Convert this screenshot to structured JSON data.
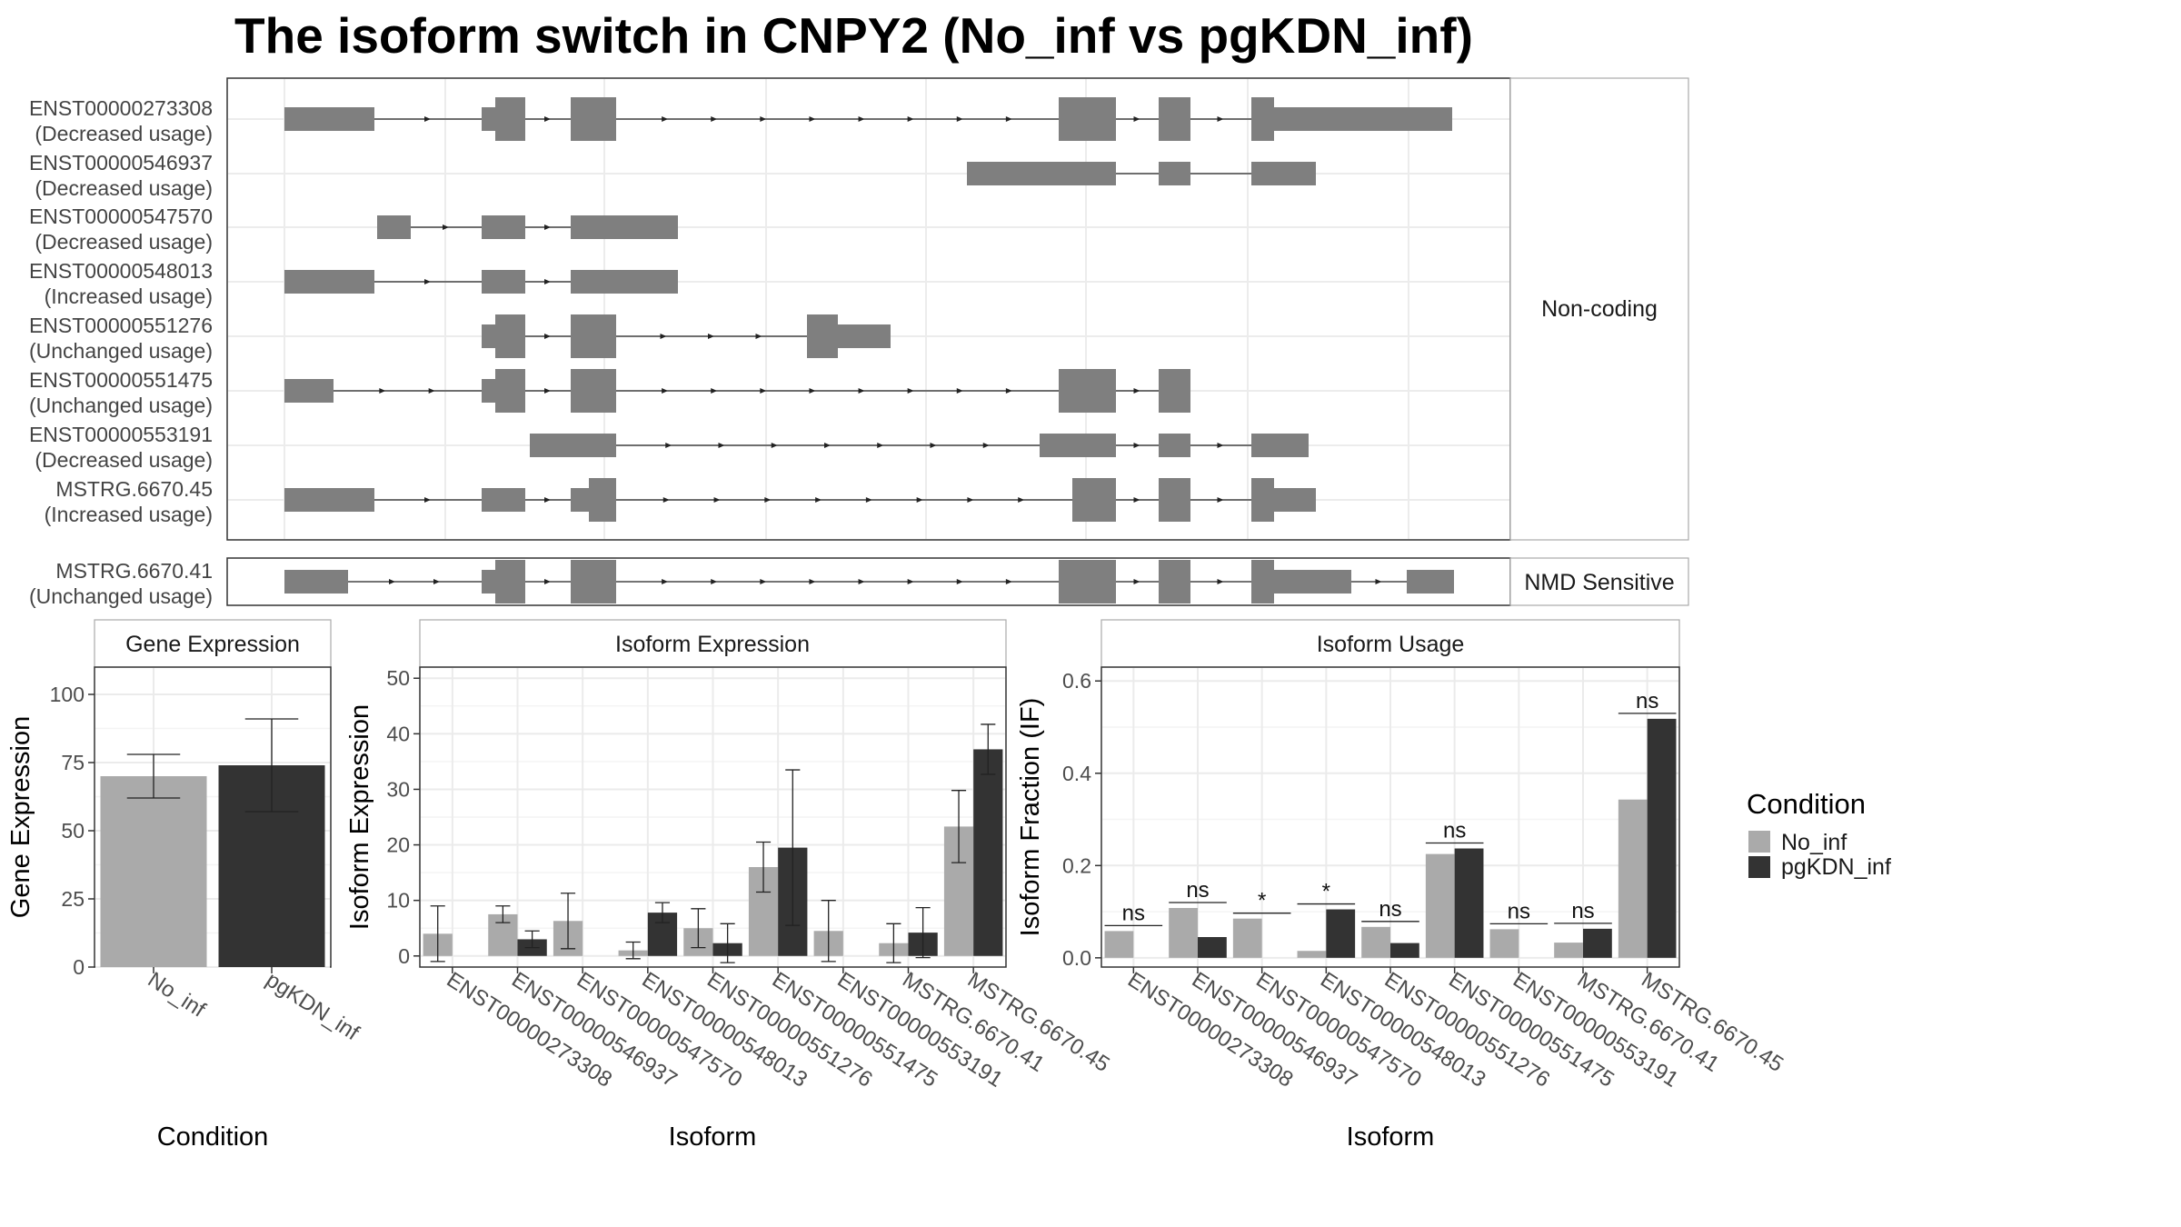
{
  "title": "The isoform switch in CNPY2 (No_inf vs pgKDN_inf)",
  "colors": {
    "no_inf": "#aaaaaa",
    "pgkdn_inf": "#333333",
    "exon": "#7f7f7f",
    "panel_border": "#333333",
    "strip_border": "#aaaaaa",
    "grid": "#ebebeb"
  },
  "structure": {
    "noncoding_label": "Non-coding",
    "nmd_label": "NMD Sensitive",
    "transcripts": [
      {
        "id": "ENST00000273308",
        "usage": "(Decreased usage)",
        "group": "Non-coding"
      },
      {
        "id": "ENST00000546937",
        "usage": "(Decreased usage)",
        "group": "Non-coding"
      },
      {
        "id": "ENST00000547570",
        "usage": "(Decreased usage)",
        "group": "Non-coding"
      },
      {
        "id": "ENST00000548013",
        "usage": "(Increased usage)",
        "group": "Non-coding"
      },
      {
        "id": "ENST00000551276",
        "usage": "(Unchanged usage)",
        "group": "Non-coding"
      },
      {
        "id": "ENST00000551475",
        "usage": "(Unchanged usage)",
        "group": "Non-coding"
      },
      {
        "id": "ENST00000553191",
        "usage": "(Decreased usage)",
        "group": "Non-coding"
      },
      {
        "id": "MSTRG.6670.45",
        "usage": "(Increased usage)",
        "group": "Non-coding"
      },
      {
        "id": "MSTRG.6670.41",
        "usage": "(Unchanged usage)",
        "group": "NMD Sensitive"
      }
    ]
  },
  "legend": {
    "title": "Condition",
    "entries": [
      "No_inf",
      "pgKDN_inf"
    ]
  },
  "chart_data": [
    {
      "type": "bar",
      "title": "Gene Expression",
      "xlabel": "Condition",
      "ylabel": "Gene Expression",
      "categories": [
        "No_inf",
        "pgKDN_inf"
      ],
      "values": [
        70.0,
        74.0
      ],
      "errors": [
        8.0,
        17.0
      ],
      "ylim": [
        0,
        110
      ],
      "yticks": [
        0,
        25,
        50,
        75,
        100
      ],
      "grid": true
    },
    {
      "type": "bar",
      "title": "Isoform Expression",
      "xlabel": "Isoform",
      "ylabel": "Isoform Expression",
      "categories": [
        "ENST00000273308",
        "ENST00000546937",
        "ENST00000547570",
        "ENST00000548013",
        "ENST00000551276",
        "ENST00000551475",
        "ENST00000553191",
        "MSTRG.6670.41",
        "MSTRG.6670.45"
      ],
      "series": [
        {
          "name": "No_inf",
          "values": [
            4.0,
            7.5,
            6.3,
            1.0,
            5.0,
            16.0,
            4.5,
            2.3,
            23.3
          ],
          "errors": [
            5.0,
            1.5,
            5.0,
            1.5,
            3.5,
            4.5,
            5.5,
            3.5,
            6.5
          ]
        },
        {
          "name": "pgKDN_inf",
          "values": [
            0.0,
            3.0,
            0.0,
            7.8,
            2.3,
            19.5,
            0.0,
            4.2,
            37.2
          ],
          "errors": [
            0.0,
            1.5,
            0.0,
            1.8,
            3.5,
            14.0,
            0.0,
            4.5,
            4.5
          ]
        }
      ],
      "ylim": [
        -2,
        52
      ],
      "yticks": [
        0,
        10,
        20,
        30,
        40,
        50
      ],
      "grid": true
    },
    {
      "type": "bar",
      "title": "Isoform Usage",
      "xlabel": "Isoform",
      "ylabel": "Isoform Fraction (IF)",
      "categories": [
        "ENST00000273308",
        "ENST00000546937",
        "ENST00000547570",
        "ENST00000548013",
        "ENST00000551276",
        "ENST00000551475",
        "ENST00000553191",
        "MSTRG.6670.41",
        "MSTRG.6670.45"
      ],
      "series": [
        {
          "name": "No_inf",
          "values": [
            0.058,
            0.108,
            0.085,
            0.015,
            0.067,
            0.225,
            0.062,
            0.033,
            0.343
          ]
        },
        {
          "name": "pgKDN_inf",
          "values": [
            0.0,
            0.045,
            0.0,
            0.105,
            0.032,
            0.237,
            0.0,
            0.063,
            0.518
          ]
        }
      ],
      "significance": [
        "ns",
        "ns",
        "*",
        "*",
        "ns",
        "ns",
        "ns",
        "ns",
        "ns"
      ],
      "ylim": [
        -0.02,
        0.63
      ],
      "yticks": [
        0.0,
        0.2,
        0.4,
        0.6
      ],
      "grid": true
    }
  ]
}
